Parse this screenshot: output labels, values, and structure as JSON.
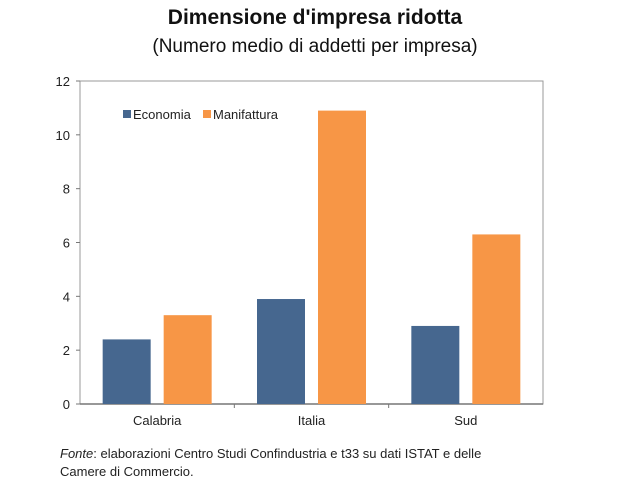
{
  "chart_data": {
    "type": "bar",
    "title": "Dimensione d'impresa ridotta",
    "subtitle": "(Numero medio di addetti per impresa)",
    "categories": [
      "Calabria",
      "Italia",
      "Sud"
    ],
    "series": [
      {
        "name": "Economia",
        "color": "#46678f",
        "values": [
          2.4,
          3.9,
          2.9
        ]
      },
      {
        "name": "Manifattura",
        "color": "#f79646",
        "values": [
          3.3,
          10.9,
          6.3
        ]
      }
    ],
    "xlabel": "",
    "ylabel": "",
    "ylim": [
      0,
      12
    ],
    "yticks": [
      0,
      2,
      4,
      6,
      8,
      10,
      12
    ],
    "grid": false,
    "legend": "top-left"
  },
  "note": {
    "source_label": "Fonte",
    "text": ": elaborazioni Centro Studi Confindustria e t33 su dati ISTAT e delle Camere di Commercio."
  }
}
